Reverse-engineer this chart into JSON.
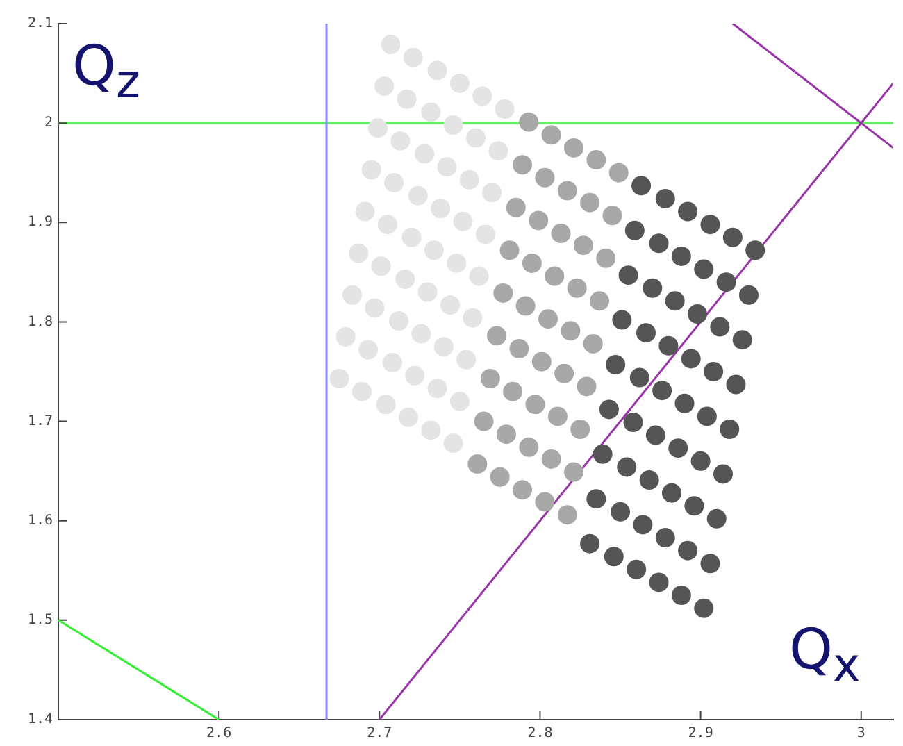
{
  "chart_data": {
    "type": "scatter",
    "annotations": [
      "Q$_{z}$",
      "Q$_{x}$"
    ],
    "xlim": [
      2.5,
      3.02
    ],
    "xticks": [
      2.6,
      2.7,
      2.8,
      2.9,
      3
    ],
    "ylim": [
      1.4,
      2.1
    ],
    "yticks": [
      1.4,
      1.5,
      1.6,
      1.7,
      1.8,
      1.9,
      2,
      2.1
    ],
    "grid": false,
    "legend": false,
    "marker": "circle",
    "ref_lines": [
      {
        "axis": "y",
        "value": 2,
        "color": "#66ee66"
      },
      {
        "axis": "x",
        "value": 2.667,
        "color": "#8888ff"
      }
    ],
    "series": [
      {
        "color": "#e4e4e4",
        "x": [
          2.707,
          2.703,
          2.699,
          2.695,
          2.691,
          2.687,
          2.683,
          2.679,
          2.675,
          2.721,
          2.717,
          2.713,
          2.709,
          2.705,
          2.701,
          2.697,
          2.693,
          2.689,
          2.736,
          2.732,
          2.728,
          2.724,
          2.72,
          2.716,
          2.712,
          2.708,
          2.704,
          2.75,
          2.746,
          2.742,
          2.738,
          2.734,
          2.73,
          2.726,
          2.722,
          2.718,
          2.764,
          2.76,
          2.756,
          2.752,
          2.748,
          2.744,
          2.74,
          2.736,
          2.732,
          2.778,
          2.774,
          2.77,
          2.766,
          2.762,
          2.758,
          2.754,
          2.75,
          2.746
        ],
        "values": [
          2.079,
          2.037,
          1.995,
          1.953,
          1.911,
          1.869,
          1.827,
          1.785,
          1.743,
          2.066,
          2.024,
          1.982,
          1.94,
          1.898,
          1.856,
          1.814,
          1.772,
          1.73,
          2.053,
          2.011,
          1.969,
          1.927,
          1.885,
          1.843,
          1.801,
          1.759,
          1.717,
          2.04,
          1.998,
          1.956,
          1.914,
          1.872,
          1.83,
          1.788,
          1.746,
          1.704,
          2.027,
          1.985,
          1.943,
          1.901,
          1.859,
          1.817,
          1.775,
          1.733,
          1.691,
          2.014,
          1.972,
          1.93,
          1.888,
          1.846,
          1.804,
          1.762,
          1.72,
          1.678
        ]
      },
      {
        "color": "#a8a8a8",
        "x": [
          2.793,
          2.789,
          2.785,
          2.781,
          2.777,
          2.773,
          2.769,
          2.765,
          2.761,
          2.807,
          2.803,
          2.799,
          2.795,
          2.791,
          2.787,
          2.783,
          2.779,
          2.775,
          2.821,
          2.817,
          2.813,
          2.809,
          2.805,
          2.801,
          2.797,
          2.793,
          2.789,
          2.835,
          2.831,
          2.827,
          2.823,
          2.819,
          2.815,
          2.811,
          2.807,
          2.803,
          2.849,
          2.845,
          2.841,
          2.837,
          2.833,
          2.829,
          2.825,
          2.821,
          2.817
        ],
        "values": [
          2.001,
          1.958,
          1.915,
          1.872,
          1.829,
          1.786,
          1.743,
          1.7,
          1.657,
          1.988,
          1.945,
          1.902,
          1.859,
          1.816,
          1.773,
          1.73,
          1.687,
          1.644,
          1.975,
          1.932,
          1.889,
          1.846,
          1.803,
          1.76,
          1.717,
          1.674,
          1.631,
          1.963,
          1.92,
          1.877,
          1.834,
          1.791,
          1.748,
          1.705,
          1.662,
          1.619,
          1.95,
          1.907,
          1.864,
          1.821,
          1.778,
          1.735,
          1.692,
          1.649,
          1.606
        ]
      },
      {
        "color": "#555555",
        "x": [
          2.863,
          2.859,
          2.855,
          2.851,
          2.847,
          2.843,
          2.839,
          2.835,
          2.831,
          2.878,
          2.874,
          2.87,
          2.866,
          2.862,
          2.858,
          2.854,
          2.85,
          2.846,
          2.892,
          2.888,
          2.884,
          2.88,
          2.876,
          2.872,
          2.868,
          2.864,
          2.86,
          2.906,
          2.902,
          2.898,
          2.894,
          2.89,
          2.886,
          2.882,
          2.878,
          2.874,
          2.92,
          2.916,
          2.912,
          2.908,
          2.904,
          2.9,
          2.896,
          2.892,
          2.888,
          2.934,
          2.93,
          2.926,
          2.922,
          2.918,
          2.914,
          2.91,
          2.906,
          2.902
        ],
        "values": [
          1.937,
          1.892,
          1.847,
          1.802,
          1.757,
          1.712,
          1.667,
          1.622,
          1.577,
          1.924,
          1.879,
          1.834,
          1.789,
          1.744,
          1.699,
          1.654,
          1.609,
          1.564,
          1.911,
          1.866,
          1.821,
          1.776,
          1.731,
          1.686,
          1.641,
          1.596,
          1.551,
          1.898,
          1.853,
          1.808,
          1.763,
          1.718,
          1.673,
          1.628,
          1.583,
          1.538,
          1.885,
          1.84,
          1.795,
          1.75,
          1.705,
          1.66,
          1.615,
          1.57,
          1.525,
          1.872,
          1.827,
          1.782,
          1.737,
          1.692,
          1.647,
          1.602,
          1.557,
          1.512
        ]
      },
      {
        "type": "line",
        "color": "#33ee33",
        "marker": "none",
        "x": [
          2.5,
          2.6
        ],
        "values": [
          1.5,
          1.4
        ]
      },
      {
        "type": "line",
        "color": "#9933aa",
        "marker": "none",
        "x": [
          2.7,
          3.02
        ],
        "values": [
          1.4,
          2.04
        ]
      },
      {
        "type": "line",
        "color": "#9933aa",
        "marker": "none",
        "x": [
          2.92,
          3.02
        ],
        "values": [
          2.1,
          1.975
        ]
      }
    ]
  }
}
